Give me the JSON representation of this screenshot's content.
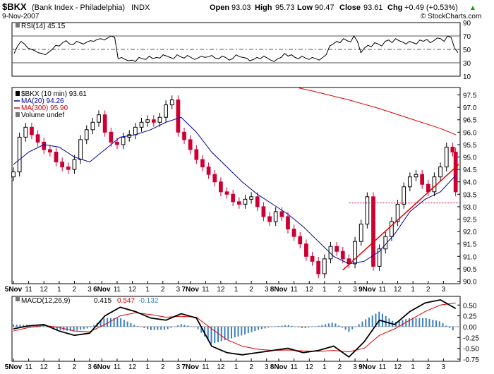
{
  "header": {
    "symbol": "$BKX",
    "name": "(Bank Index - Philadelphia)",
    "exchange": "INDX",
    "date": "9-Nov-2007",
    "open_label": "Open",
    "open": "93.03",
    "high_label": "High",
    "high": "95.73",
    "low_label": "Low",
    "low": "90.47",
    "close_label": "Close",
    "close": "93.61",
    "chg_label": "Chg",
    "chg": "+0.49 (+0.53%)",
    "watermark": "© StockCharts.com",
    "arrow_glyph": "▲"
  },
  "colors": {
    "price_up": "#000000",
    "price_down": "#cc0033",
    "ma20": "#000099",
    "ma300": "#dd0000",
    "trendline": "#dd0000",
    "histogram": "#3a7fc0",
    "signal": "#dd0000",
    "rsi": "#000000"
  },
  "chart_data": [
    {
      "type": "line",
      "title": "RSI(14) 45.15",
      "legend": "RSI(14) 45.15",
      "yticks": [
        "90",
        "70",
        "50",
        "30",
        "10"
      ],
      "ylim": [
        10,
        90
      ],
      "reference_lines": [
        70,
        50,
        30
      ],
      "series": [
        {
          "name": "RSI(14)",
          "x": [
            0,
            2,
            4,
            6,
            8,
            10,
            12,
            14,
            16,
            18,
            20,
            22,
            24,
            26,
            28,
            30,
            32,
            34,
            36,
            38,
            40,
            42,
            44,
            46,
            48,
            50,
            52,
            54,
            56,
            58,
            60,
            62,
            64,
            66,
            68,
            70,
            72,
            74,
            76,
            78,
            80,
            82,
            84,
            86,
            88,
            90,
            92,
            94,
            96,
            98,
            100,
            102,
            104,
            106,
            108,
            110,
            112,
            114,
            116,
            118,
            120,
            122,
            124,
            126,
            128,
            130,
            132,
            134,
            136,
            138,
            140,
            142,
            144,
            146,
            148,
            150,
            152,
            154,
            156,
            158,
            160,
            162,
            164,
            166,
            168,
            170,
            172,
            174,
            176,
            178,
            180,
            182,
            184,
            186,
            188,
            190,
            192,
            194,
            196,
            198,
            200,
            202,
            204,
            206,
            208,
            210,
            212,
            214,
            216,
            218,
            220,
            222,
            224,
            226,
            228,
            230,
            232,
            234,
            236,
            238,
            240,
            242,
            244,
            246,
            248,
            250,
            252,
            254,
            256
          ],
          "values": [
            44,
            55,
            62,
            58,
            52,
            50,
            48,
            45,
            44,
            42,
            46,
            50,
            56,
            55,
            60,
            63,
            58,
            57,
            62,
            60,
            58,
            61,
            63,
            62,
            65,
            66,
            64,
            67,
            70,
            68,
            36,
            38,
            35,
            33,
            34,
            32,
            38,
            36,
            35,
            40,
            36,
            38,
            37,
            42,
            40,
            38,
            36,
            42,
            39,
            37,
            41,
            38,
            35,
            37,
            40,
            38,
            39,
            41,
            37,
            36,
            40,
            38,
            34,
            36,
            42,
            39,
            38,
            37,
            33,
            35,
            38,
            36,
            40,
            37,
            34,
            32,
            36,
            38,
            44,
            40,
            42,
            38,
            36,
            40,
            37,
            35,
            38,
            36,
            34,
            38,
            42,
            55,
            58,
            62,
            60,
            66,
            63,
            61,
            70,
            62,
            45,
            52,
            56,
            54,
            60,
            58,
            55,
            62,
            64,
            60,
            66,
            63,
            61,
            58,
            62,
            60,
            58,
            64,
            62,
            65,
            60,
            63,
            67,
            66,
            62,
            70,
            68,
            52,
            45
          ]
        }
      ]
    },
    {
      "type": "candlestick",
      "legend": [
        {
          "label": "$BKX (10 min) 93.61",
          "kind": "price"
        },
        {
          "label": "MA(20) 94.26",
          "kind": "ma20"
        },
        {
          "label": "MA(300) 95.90",
          "kind": "ma300"
        },
        {
          "label": "Volume undef",
          "kind": "volume"
        }
      ],
      "yticks": [
        "97.5",
        "97.0",
        "96.5",
        "96.0",
        "95.5",
        "95.0",
        "94.5",
        "94.0",
        "93.5",
        "93.0",
        "92.5",
        "92.0",
        "91.5",
        "91.0",
        "90.5",
        "90.0"
      ],
      "ylim": [
        89.9,
        97.8
      ],
      "close_reference": 93.15,
      "x_labels": [
        "5Nov",
        "11",
        "12",
        "1",
        "2",
        "3",
        "6Nov",
        "11",
        "12",
        "1",
        "2",
        "3",
        "7Nov",
        "11",
        "12",
        "1",
        "2",
        "3",
        "8Nov",
        "11",
        "12",
        "1",
        "2",
        "3",
        "9Nov",
        "11",
        "12",
        "1",
        "2",
        "3"
      ],
      "x_label_positions": [
        0,
        10,
        20,
        30,
        40,
        50,
        58,
        68,
        78,
        88,
        98,
        108,
        116,
        126,
        136,
        146,
        156,
        166,
        174,
        184,
        194,
        204,
        214,
        224,
        232,
        242,
        252,
        262,
        272,
        282
      ],
      "x_range": [
        0,
        292
      ],
      "series": [
        {
          "name": "$BKX close",
          "x": [
            0,
            4,
            8,
            12,
            16,
            20,
            24,
            28,
            32,
            36,
            40,
            44,
            48,
            52,
            56,
            60,
            64,
            68,
            72,
            76,
            80,
            84,
            88,
            92,
            96,
            100,
            104,
            108,
            112,
            116,
            120,
            124,
            128,
            132,
            136,
            140,
            144,
            148,
            152,
            156,
            160,
            164,
            168,
            172,
            176,
            180,
            184,
            188,
            192,
            196,
            200,
            204,
            208,
            212,
            216,
            220,
            224,
            228,
            232,
            236,
            240,
            244,
            248,
            252,
            256,
            260,
            264,
            268,
            272,
            276,
            280,
            284,
            288,
            290
          ],
          "values": [
            94.4,
            95.8,
            96.2,
            95.9,
            95.6,
            95.3,
            95.2,
            94.8,
            94.6,
            94.5,
            94.9,
            95.7,
            96.1,
            96.4,
            96.7,
            96.0,
            95.6,
            95.5,
            95.8,
            95.9,
            96.2,
            96.4,
            96.5,
            96.4,
            96.6,
            97.1,
            97.3,
            96.0,
            95.7,
            95.3,
            94.9,
            94.6,
            94.3,
            94.0,
            93.6,
            93.5,
            93.2,
            93.1,
            93.3,
            93.4,
            93.0,
            92.6,
            92.4,
            92.8,
            92.6,
            92.1,
            91.8,
            91.5,
            91.0,
            90.8,
            90.3,
            90.9,
            91.4,
            91.2,
            90.9,
            90.7,
            91.6,
            92.3,
            93.4,
            90.6,
            91.3,
            91.8,
            92.4,
            93.1,
            93.8,
            94.2,
            94.3,
            93.9,
            93.6,
            94.2,
            94.6,
            95.4,
            95.2,
            93.6
          ]
        },
        {
          "name": "MA(20)",
          "x": [
            0,
            10,
            20,
            30,
            40,
            50,
            60,
            70,
            80,
            90,
            100,
            110,
            120,
            130,
            140,
            150,
            160,
            170,
            180,
            190,
            200,
            210,
            220,
            230,
            240,
            250,
            260,
            270,
            280,
            290
          ],
          "values": [
            94.7,
            95.2,
            95.5,
            95.4,
            95.0,
            94.8,
            95.3,
            95.8,
            95.9,
            96.1,
            96.4,
            96.6,
            96.0,
            95.2,
            94.6,
            94.0,
            93.5,
            93.1,
            92.7,
            92.2,
            91.6,
            91.0,
            90.7,
            90.8,
            91.2,
            91.9,
            92.8,
            93.3,
            93.6,
            94.26
          ]
        },
        {
          "name": "MA(300)",
          "x": [
            186,
            200,
            220,
            240,
            260,
            280,
            290
          ],
          "values": [
            97.8,
            97.6,
            97.3,
            96.95,
            96.55,
            96.15,
            95.9
          ]
        },
        {
          "name": "Trendline",
          "x": [
            216,
            292
          ],
          "values": [
            90.45,
            94.7
          ]
        }
      ]
    },
    {
      "type": "line",
      "title": "MACD(12,26,9) 0.415, 0.547, -0.132",
      "legend_prefix": "MACD(12,26,9)",
      "legend_values": [
        "0.415",
        "0.547",
        "-0.132"
      ],
      "yticks": [
        "0.50",
        "0.25",
        "0.00",
        "-0.25",
        "-0.50",
        "-0.75"
      ],
      "ylim": [
        -0.8,
        0.7
      ],
      "x_labels": [
        "5Nov",
        "11",
        "12",
        "1",
        "2",
        "3",
        "6Nov",
        "11",
        "12",
        "1",
        "2",
        "3",
        "7Nov",
        "11",
        "12",
        "1",
        "2",
        "3",
        "8Nov",
        "11",
        "12",
        "1",
        "2",
        "3",
        "9Nov",
        "11",
        "12",
        "1",
        "2",
        "3"
      ],
      "series": [
        {
          "name": "MACD",
          "x": [
            0,
            10,
            20,
            30,
            40,
            50,
            60,
            70,
            80,
            90,
            100,
            110,
            120,
            130,
            140,
            150,
            160,
            170,
            180,
            190,
            200,
            210,
            220,
            230,
            240,
            250,
            260,
            270,
            280,
            290
          ],
          "values": [
            -0.05,
            0.02,
            0.05,
            -0.1,
            -0.2,
            -0.15,
            0.25,
            0.45,
            0.35,
            0.2,
            0.15,
            0.3,
            0.2,
            -0.45,
            -0.6,
            -0.65,
            -0.6,
            -0.55,
            -0.5,
            -0.6,
            -0.55,
            -0.45,
            -0.7,
            -0.35,
            0.15,
            0.05,
            0.35,
            0.55,
            0.62,
            0.42
          ]
        },
        {
          "name": "Signal",
          "x": [
            0,
            10,
            20,
            30,
            40,
            50,
            60,
            70,
            80,
            90,
            100,
            110,
            120,
            130,
            140,
            150,
            160,
            170,
            180,
            190,
            200,
            210,
            220,
            230,
            240,
            250,
            260,
            270,
            280,
            290
          ],
          "values": [
            -0.1,
            -0.02,
            0.03,
            -0.02,
            -0.1,
            -0.12,
            0.05,
            0.25,
            0.32,
            0.28,
            0.22,
            0.24,
            0.22,
            -0.05,
            -0.3,
            -0.45,
            -0.52,
            -0.55,
            -0.54,
            -0.56,
            -0.57,
            -0.55,
            -0.58,
            -0.5,
            -0.2,
            -0.05,
            0.15,
            0.35,
            0.5,
            0.55
          ]
        },
        {
          "name": "Histogram",
          "x": [
            0,
            10,
            20,
            30,
            40,
            50,
            60,
            70,
            80,
            90,
            100,
            110,
            120,
            130,
            140,
            150,
            160,
            170,
            180,
            190,
            200,
            210,
            220,
            230,
            240,
            250,
            260,
            270,
            280,
            290
          ],
          "values": [
            0.05,
            0.04,
            0.02,
            -0.08,
            -0.1,
            -0.03,
            0.2,
            0.2,
            0.03,
            -0.08,
            -0.07,
            0.06,
            -0.02,
            -0.4,
            -0.3,
            -0.2,
            -0.08,
            0.0,
            0.04,
            -0.04,
            0.02,
            0.1,
            -0.12,
            0.15,
            0.35,
            0.1,
            0.2,
            0.2,
            0.12,
            -0.13
          ]
        }
      ]
    }
  ]
}
